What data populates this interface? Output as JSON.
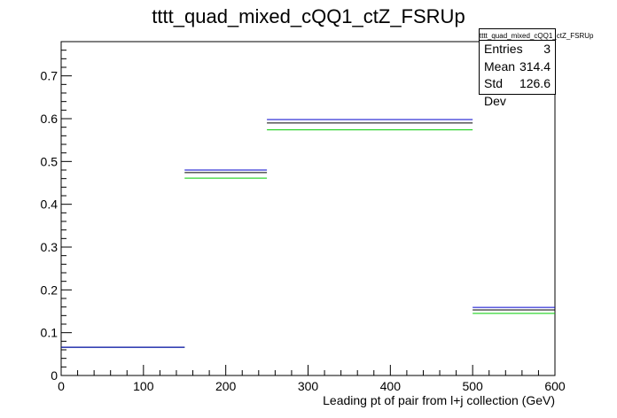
{
  "chart_data": {
    "type": "bar",
    "title": "tttt_quad_mixed_cQQ1_ctZ_FSRUp",
    "xlabel": "Leading pt of pair from l+j collection (GeV)",
    "ylabel": "",
    "xlim": [
      0,
      600
    ],
    "ylim": [
      0,
      0.78
    ],
    "x_ticks": [
      0,
      100,
      200,
      300,
      400,
      500,
      600
    ],
    "y_ticks": [
      0,
      0.1,
      0.2,
      0.3,
      0.4,
      0.5,
      0.6,
      0.7
    ],
    "bin_edges": [
      0,
      150,
      250,
      500,
      600
    ],
    "grid": false,
    "series": [
      {
        "color": "#000000",
        "values": [
          0.066,
          0.474,
          0.59,
          0.153
        ]
      },
      {
        "color": "#0000cc",
        "values": [
          0.066,
          0.48,
          0.598,
          0.159
        ]
      },
      {
        "color": "#00cc00",
        "values": [
          0.066,
          0.461,
          0.574,
          0.145
        ]
      }
    ],
    "stats": {
      "name": "tttt_quad_mixed_cQQ1_ctZ_FSRUp",
      "rows": [
        {
          "label": "Entries",
          "value": "3"
        },
        {
          "label": "Mean",
          "value": "314.4"
        },
        {
          "label": "Std Dev",
          "value": "126.6"
        }
      ]
    }
  }
}
